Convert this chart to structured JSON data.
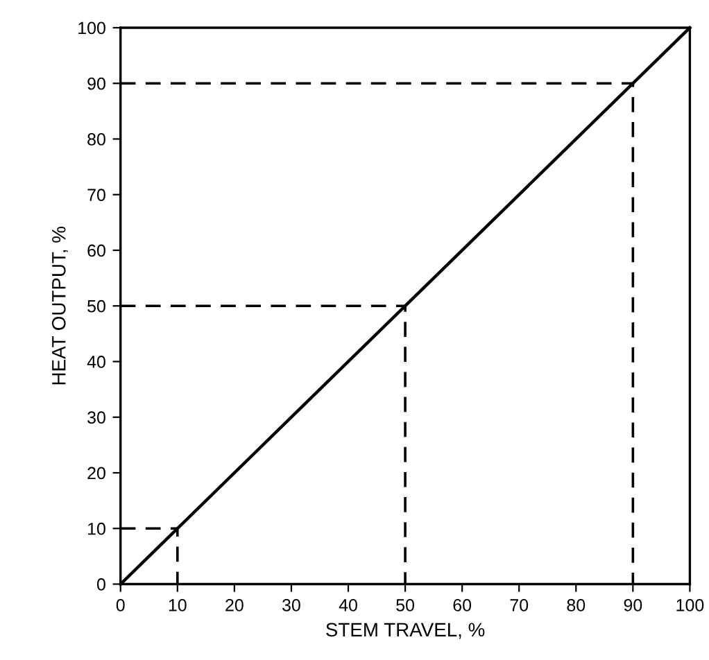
{
  "chart_data": {
    "type": "line",
    "xlabel": "STEM TRAVEL, %",
    "ylabel": "HEAT OUTPUT, %",
    "xlim": [
      0,
      100
    ],
    "ylim": [
      0,
      100
    ],
    "xticks": [
      0,
      10,
      20,
      30,
      40,
      50,
      60,
      70,
      80,
      90,
      100
    ],
    "yticks": [
      0,
      10,
      20,
      30,
      40,
      50,
      60,
      70,
      80,
      90,
      100
    ],
    "grid": false,
    "legend": false,
    "marker": "none",
    "series": [
      {
        "color": "#000000",
        "x": [
          0,
          100
        ],
        "values": [
          0,
          100
        ],
        "line_style": "solid"
      },
      {
        "color": "#000000",
        "x": [
          0,
          10,
          10
        ],
        "values": [
          10,
          10,
          0
        ],
        "line_style": "dashed"
      },
      {
        "color": "#000000",
        "x": [
          0,
          50,
          50
        ],
        "values": [
          50,
          50,
          0
        ],
        "line_style": "dashed"
      },
      {
        "color": "#000000",
        "x": [
          0,
          90,
          90
        ],
        "values": [
          90,
          90,
          0
        ],
        "line_style": "dashed"
      }
    ]
  }
}
